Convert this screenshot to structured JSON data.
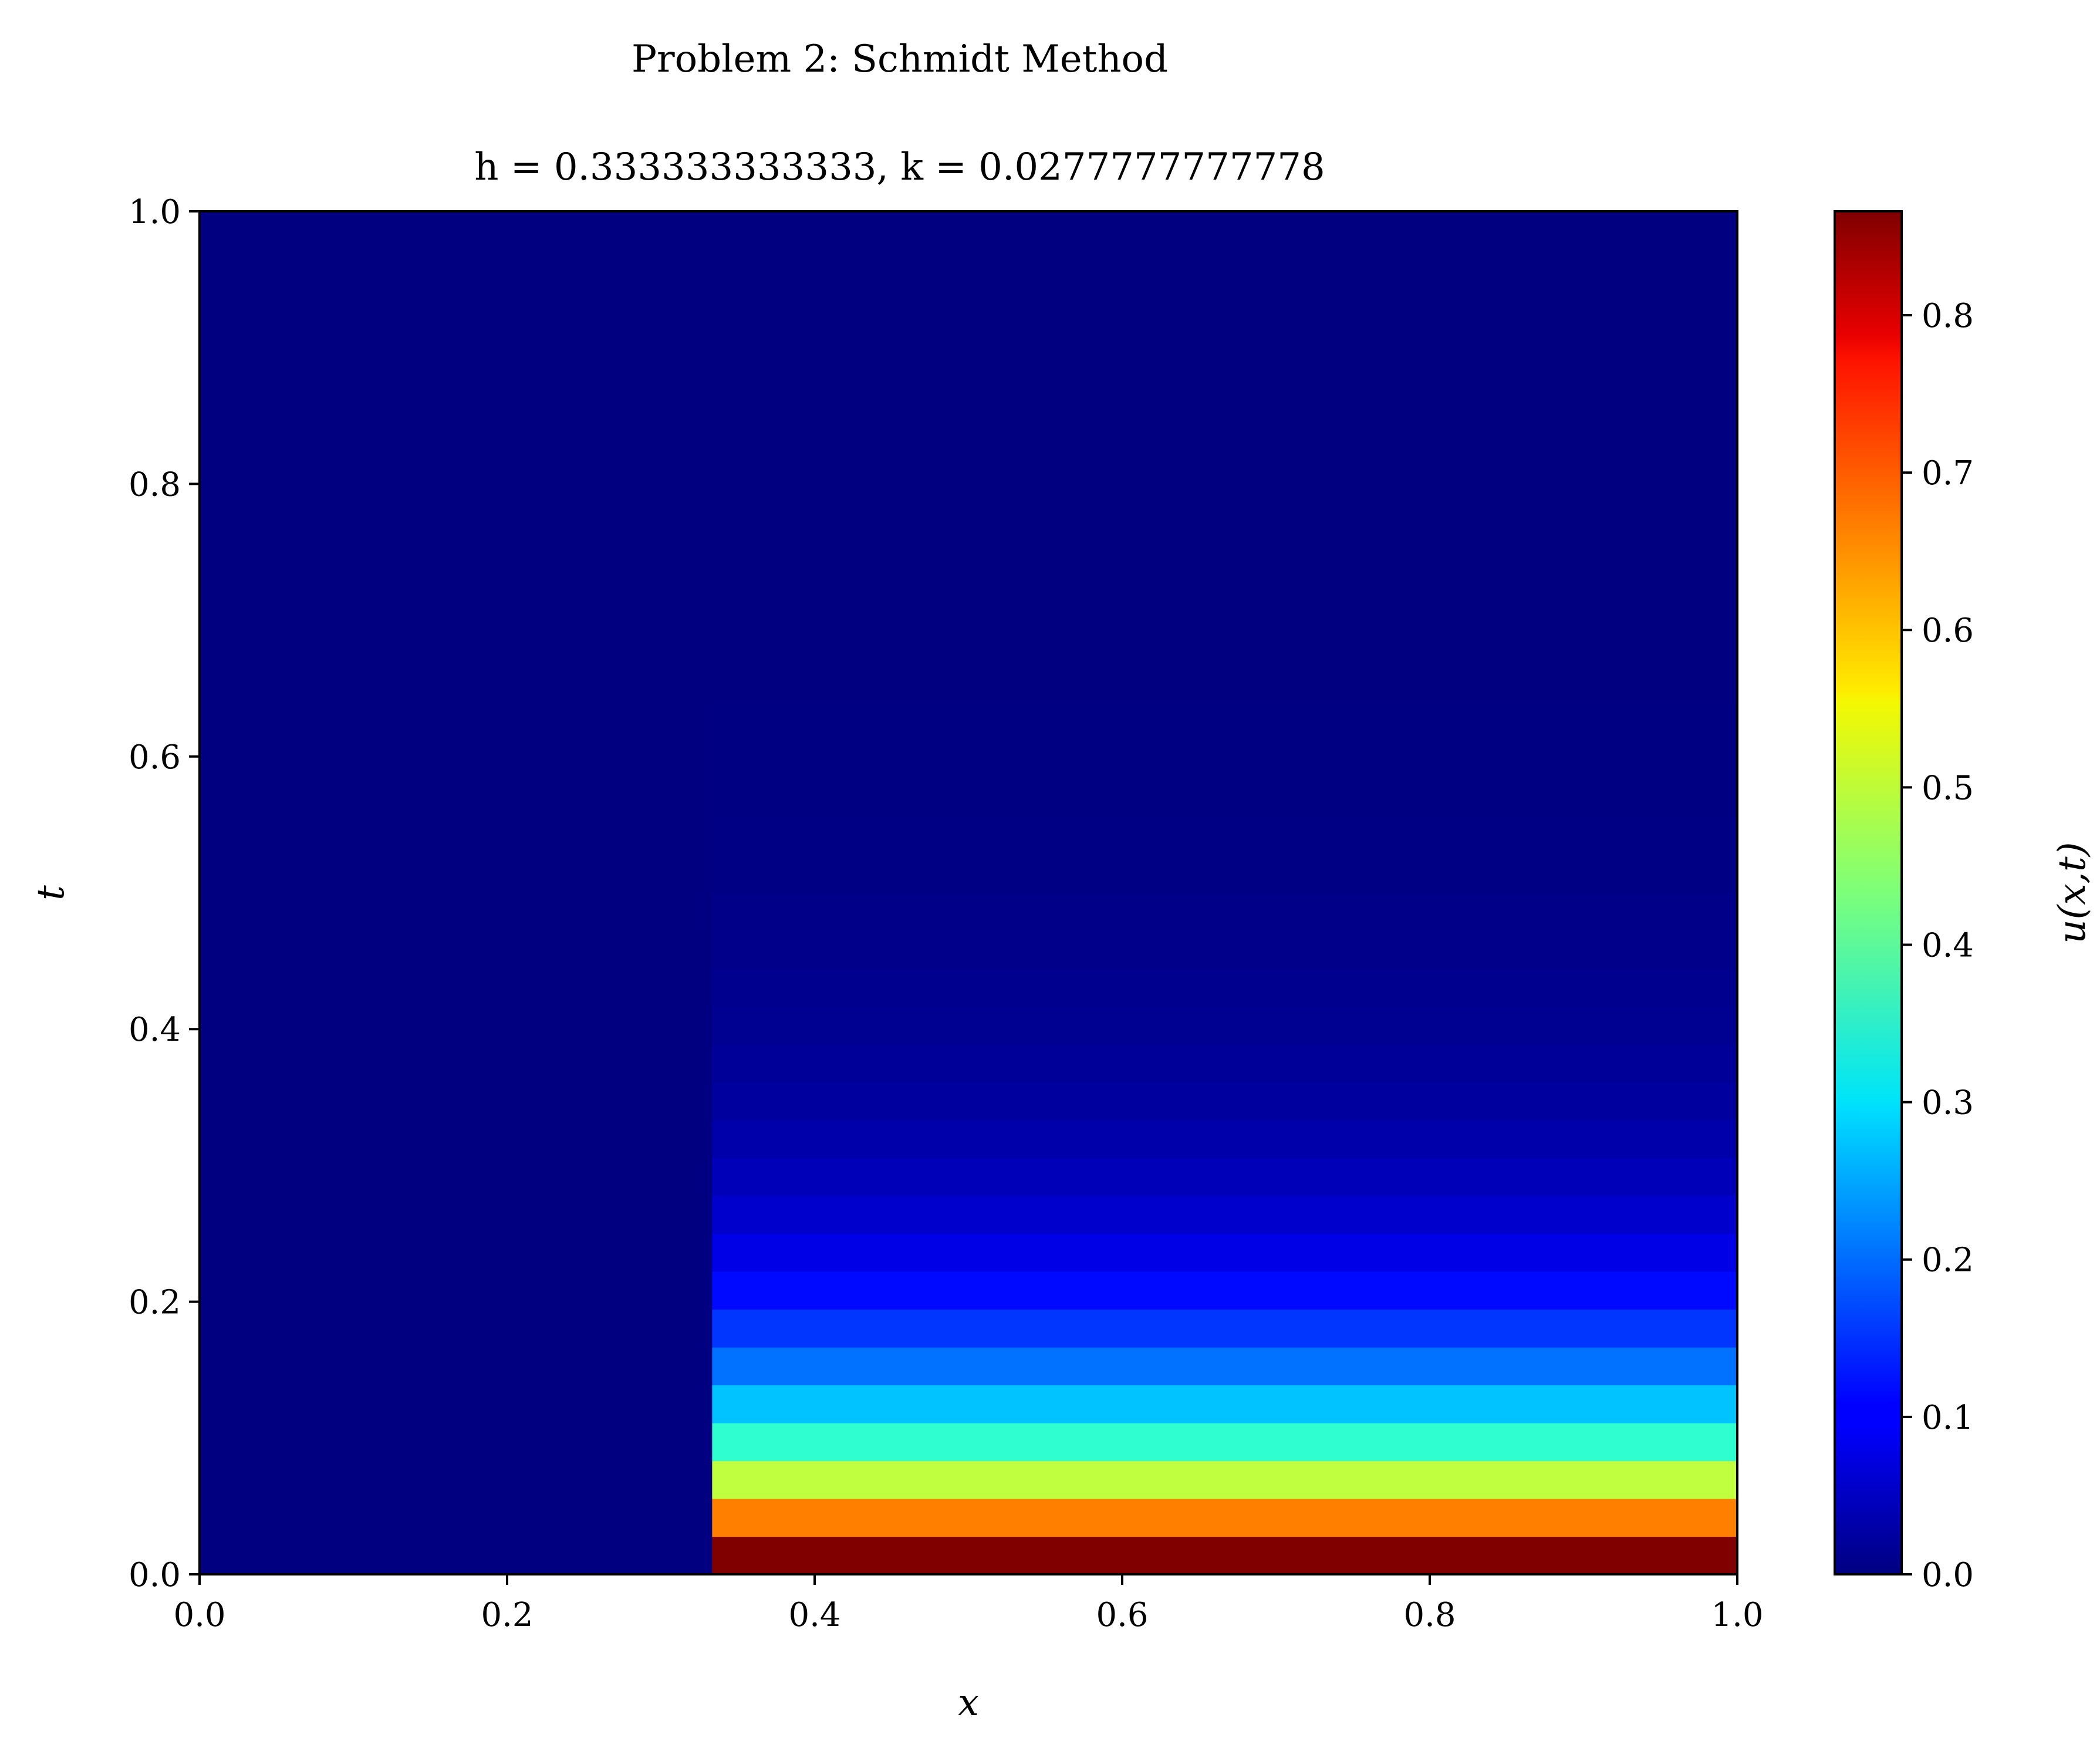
{
  "chart_data": {
    "type": "heatmap",
    "suptitle": "Problem 2: Schmidt Method",
    "title": "h = 0.333333333333, k = 0.0277777777778",
    "xlabel": "x",
    "ylabel": "t",
    "colorbar_label": "u(x,t)",
    "colormap": "jet",
    "xlim": [
      0.0,
      1.0
    ],
    "ylim": [
      0.0,
      1.0
    ],
    "xticks": [
      "0.0",
      "0.2",
      "0.4",
      "0.6",
      "0.8",
      "1.0"
    ],
    "yticks": [
      "0.0",
      "0.2",
      "0.4",
      "0.6",
      "0.8",
      "1.0"
    ],
    "colorbar_range": [
      0.0,
      0.866
    ],
    "colorbar_ticks": [
      "0.0",
      "0.1",
      "0.2",
      "0.3",
      "0.4",
      "0.5",
      "0.6",
      "0.7",
      "0.8"
    ],
    "x_edges": [
      0.0,
      0.333333333333,
      1.0
    ],
    "k": 0.0277777777778,
    "num_time_steps": 36,
    "left_column_value": 0.0,
    "right_column_values": [
      0.866,
      0.65,
      0.487,
      0.365,
      0.274,
      0.205,
      0.154,
      0.116,
      0.087,
      0.065,
      0.049,
      0.037,
      0.027,
      0.021,
      0.015,
      0.012,
      0.009,
      0.007,
      0.005,
      0.004,
      0.003,
      0.002,
      0.002,
      0.001,
      0.001,
      0.001,
      0.0005,
      0.0004,
      0.0003,
      0.0002,
      0.0002,
      0.0001,
      0.0001,
      0.0001,
      0.0,
      0.0
    ]
  }
}
